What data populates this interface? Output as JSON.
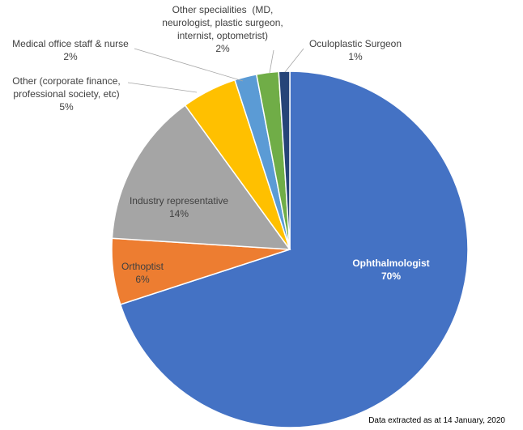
{
  "chart_data": {
    "type": "pie",
    "start_angle_deg": 0,
    "direction": "clockwise",
    "slices": [
      {
        "label": "Ophthalmologist",
        "value": 70,
        "value_label": "70%",
        "color": "#4472C4",
        "label_inside": true,
        "label_color": "#ffffff"
      },
      {
        "label": "Orthoptist",
        "value": 6,
        "value_label": "6%",
        "color": "#ED7D31",
        "label_inside": true,
        "label_color": "#404040"
      },
      {
        "label": "Industry representative",
        "value": 14,
        "value_label": "14%",
        "color": "#A5A5A5",
        "label_inside": true,
        "label_color": "#404040"
      },
      {
        "label": "Other (corporate finance, professional society, etc)",
        "value": 5,
        "value_label": "5%",
        "color": "#FFC000",
        "label_inside": false,
        "label_color": "#404040"
      },
      {
        "label": "Medical office staff & nurse",
        "value": 2,
        "value_label": "2%",
        "color": "#5B9BD5",
        "label_inside": false,
        "label_color": "#404040"
      },
      {
        "label": "Other specialities  (MD, neurologist, plastic surgeon, internist, optometrist)",
        "value": 2,
        "value_label": "2%",
        "color": "#70AD47",
        "label_inside": false,
        "label_color": "#404040"
      },
      {
        "label": "Oculoplastic Surgeon",
        "value": 1,
        "value_label": "1%",
        "color": "#264478",
        "label_inside": false,
        "label_color": "#404040"
      }
    ]
  },
  "footnote": "Data extracted as at 14 January, 2020"
}
